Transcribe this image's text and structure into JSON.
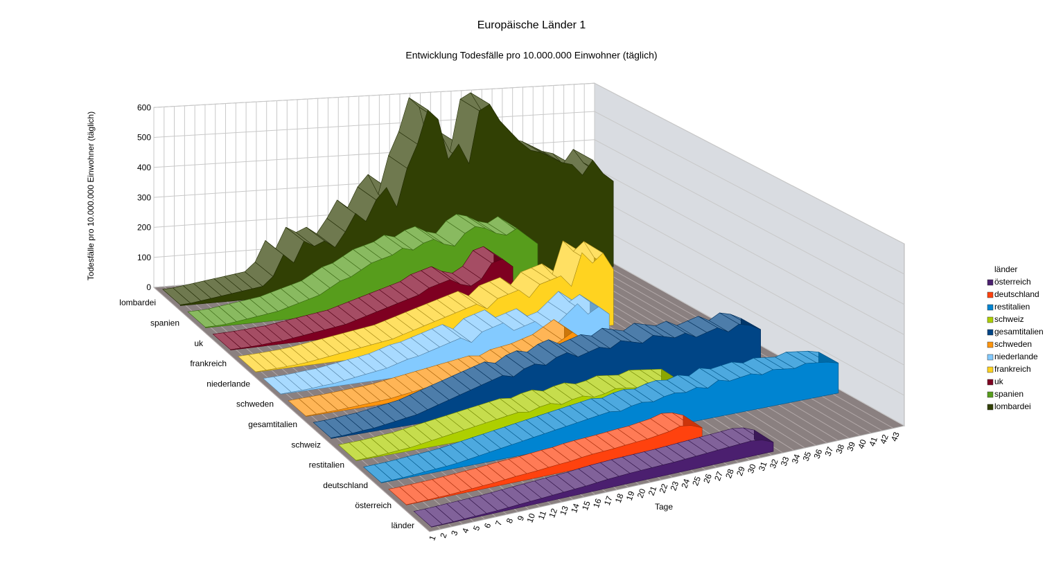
{
  "chart_data": {
    "type": "ribbon3d",
    "title": "Europäische Länder 1",
    "subtitle": "Entwicklung Todesfälle pro 10.000.000 Einwohner (täglich)",
    "y_label": "Todesfälle pro 10.000.000 Einwohner (täglich)",
    "x_label": "Tage",
    "depth_label": "länder",
    "legend_title": "länder",
    "legend": "right",
    "grid": true,
    "categories": [
      1,
      2,
      3,
      4,
      5,
      6,
      7,
      8,
      9,
      10,
      11,
      12,
      13,
      14,
      15,
      16,
      17,
      18,
      19,
      20,
      21,
      22,
      23,
      24,
      25,
      26,
      27,
      28,
      29,
      30,
      31,
      32,
      33,
      34,
      35,
      36,
      37,
      38,
      39,
      40,
      41,
      42,
      43
    ],
    "ylim": [
      0,
      600
    ],
    "yticks": [
      0,
      100,
      200,
      300,
      400,
      500,
      600
    ],
    "series": [
      {
        "name": "lombardei",
        "color": "#314004",
        "values": [
          3,
          5,
          10,
          15,
          20,
          25,
          30,
          35,
          40,
          70,
          140,
          110,
          180,
          160,
          175,
          150,
          200,
          260,
          230,
          300,
          340,
          270,
          400,
          480,
          595,
          560,
          420,
          470,
          400,
          580,
          600,
          540,
          500,
          460,
          430,
          420,
          400,
          380,
          370,
          330,
          380,
          330,
          300
        ]
      },
      {
        "name": "spanien",
        "color": "#579d1c",
        "values": [
          2,
          3,
          5,
          10,
          15,
          20,
          25,
          30,
          40,
          50,
          60,
          70,
          90,
          110,
          120,
          140,
          160,
          170,
          180,
          200,
          190,
          210,
          220,
          200,
          190,
          230,
          250,
          240,
          220,
          210,
          230,
          200,
          170,
          null,
          null,
          null,
          null,
          null,
          null,
          null,
          null,
          null,
          null
        ]
      },
      {
        "name": "uk",
        "color": "#7e0021",
        "values": [
          1,
          2,
          3,
          5,
          8,
          10,
          15,
          20,
          25,
          30,
          35,
          40,
          50,
          60,
          70,
          80,
          90,
          100,
          110,
          130,
          140,
          150,
          130,
          120,
          140,
          190,
          200,
          170,
          null,
          null,
          null,
          null,
          null,
          null,
          null,
          null,
          null,
          null,
          null,
          null,
          null,
          null,
          null
        ]
      },
      {
        "name": "frankreich",
        "color": "#ffd320",
        "values": [
          1,
          2,
          3,
          5,
          7,
          10,
          15,
          20,
          25,
          30,
          35,
          40,
          45,
          50,
          60,
          70,
          80,
          90,
          100,
          110,
          120,
          130,
          110,
          140,
          150,
          160,
          130,
          170,
          180,
          190,
          150,
          260,
          220,
          250,
          190,
          null,
          null,
          null,
          null,
          null,
          null,
          null,
          null
        ]
      },
      {
        "name": "niederlande",
        "color": "#83caff",
        "values": [
          1,
          2,
          3,
          5,
          8,
          10,
          15,
          20,
          25,
          30,
          35,
          45,
          55,
          60,
          70,
          80,
          90,
          100,
          80,
          110,
          120,
          130,
          100,
          110,
          120,
          90,
          100,
          130,
          160,
          120,
          140,
          110,
          null,
          null,
          null,
          null,
          null,
          null,
          null,
          null,
          null,
          null,
          null
        ]
      },
      {
        "name": "schweden",
        "color": "#ff950e",
        "values": [
          1,
          2,
          3,
          4,
          6,
          8,
          10,
          12,
          15,
          20,
          25,
          30,
          35,
          40,
          45,
          50,
          55,
          60,
          55,
          70,
          75,
          80,
          90,
          100,
          120,
          140,
          110,
          null,
          null,
          null,
          null,
          null,
          null,
          null,
          null,
          null,
          null,
          null,
          null,
          null,
          null,
          null,
          null
        ]
      },
      {
        "name": "gesamtitalien",
        "color": "#004586",
        "values": [
          2,
          3,
          5,
          8,
          10,
          15,
          20,
          25,
          30,
          40,
          50,
          60,
          70,
          80,
          90,
          100,
          110,
          100,
          120,
          130,
          120,
          140,
          150,
          130,
          140,
          150,
          140,
          160,
          150,
          140,
          160,
          150,
          140,
          150,
          130,
          140,
          150,
          130,
          150,
          140,
          120,
          null,
          null
        ]
      },
      {
        "name": "schweiz",
        "color": "#aecf00",
        "values": [
          1,
          2,
          3,
          5,
          8,
          10,
          15,
          20,
          25,
          30,
          35,
          40,
          45,
          50,
          55,
          60,
          55,
          65,
          70,
          60,
          70,
          75,
          65,
          70,
          80,
          75,
          70,
          80,
          75,
          70,
          65,
          null,
          null,
          null,
          null,
          null,
          null,
          null,
          null,
          null,
          null,
          null,
          null
        ]
      },
      {
        "name": "restitalien",
        "color": "#0084d1",
        "values": [
          1,
          2,
          3,
          5,
          8,
          10,
          12,
          15,
          20,
          25,
          30,
          35,
          40,
          45,
          50,
          55,
          60,
          65,
          70,
          75,
          80,
          85,
          80,
          90,
          95,
          90,
          100,
          105,
          100,
          110,
          100,
          120,
          110,
          115,
          120,
          110,
          120,
          115,
          110,
          120,
          115,
          110,
          100
        ]
      },
      {
        "name": "deutschland",
        "color": "#ff420e",
        "values": [
          1,
          1,
          2,
          3,
          4,
          6,
          8,
          10,
          12,
          15,
          18,
          20,
          22,
          25,
          28,
          30,
          35,
          38,
          40,
          42,
          45,
          48,
          50,
          55,
          60,
          70,
          65,
          50,
          null,
          null,
          null,
          null,
          null,
          null,
          null,
          null,
          null,
          null,
          null,
          null,
          null,
          null,
          null
        ]
      },
      {
        "name": "österreich",
        "color": "#4b1f6f",
        "values": [
          1,
          1,
          2,
          3,
          4,
          5,
          6,
          8,
          10,
          12,
          14,
          16,
          18,
          20,
          22,
          25,
          28,
          30,
          32,
          33,
          34,
          35,
          36,
          38,
          40,
          42,
          44,
          46,
          48,
          50,
          45,
          30,
          null,
          null,
          null,
          null,
          null,
          null,
          null,
          null,
          null,
          null,
          null
        ]
      }
    ]
  }
}
